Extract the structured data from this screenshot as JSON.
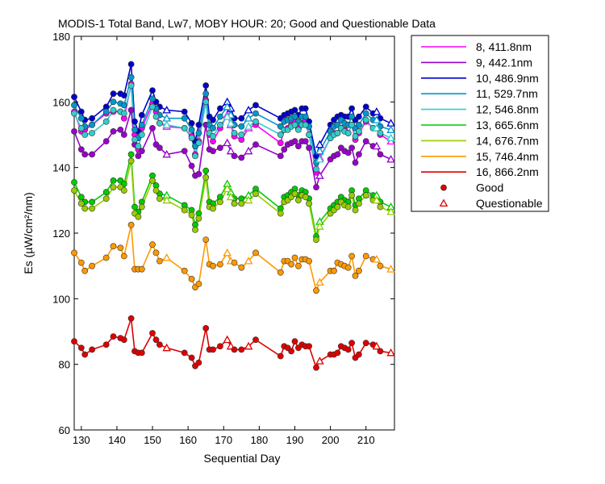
{
  "chart_data": {
    "type": "line",
    "title": "MODIS-1 Total Band,  Lw7, MOBY HOUR: 20;  Good and Questionable Data",
    "xlabel": "Sequential Day",
    "ylabel": "Es (µW/cm²/nm)",
    "xlim": [
      128,
      218
    ],
    "ylim": [
      60,
      180
    ],
    "xticks": [
      130,
      140,
      150,
      160,
      170,
      180,
      190,
      200,
      210
    ],
    "yticks": [
      60,
      80,
      100,
      120,
      140,
      160,
      180
    ],
    "grid": false,
    "legend_position": "outside-right",
    "x": [
      128,
      130,
      131,
      133,
      137,
      139,
      141,
      142,
      144,
      145,
      146,
      147,
      150,
      151,
      152,
      154,
      159,
      161,
      162,
      163,
      165,
      166,
      167,
      169,
      171,
      172,
      173,
      175,
      177,
      179,
      186,
      187,
      188,
      189,
      190,
      191,
      192,
      193,
      194,
      196,
      197,
      200,
      201,
      202,
      203,
      204,
      205,
      206,
      207,
      208,
      210,
      212,
      213,
      214,
      217
    ],
    "good_days": [
      128,
      130,
      131,
      133,
      137,
      139,
      141,
      142,
      144,
      145,
      146,
      147,
      150,
      151,
      152,
      159,
      161,
      162,
      163,
      165,
      166,
      167,
      169,
      173,
      175,
      179,
      186,
      187,
      188,
      189,
      190,
      191,
      192,
      193,
      194,
      196,
      200,
      201,
      202,
      203,
      204,
      205,
      206,
      207,
      208,
      210,
      212,
      214
    ],
    "questionable_days": [
      154,
      171,
      172,
      177,
      197,
      213,
      217
    ],
    "series": [
      {
        "name": "8, 411.8nm",
        "color": "#ff00ff",
        "values": [
          157.0,
          151.0,
          151.5,
          153.0,
          156.5,
          157.0,
          157.0,
          155.0,
          165.5,
          150.0,
          145.5,
          152.0,
          159.5,
          157.0,
          153.5,
          152.5,
          152.0,
          149.5,
          144.0,
          148.0,
          160.5,
          150.0,
          148.0,
          152.0,
          156.0,
          153.0,
          149.5,
          148.5,
          152.0,
          153.0,
          147.5,
          151.5,
          152.0,
          153.0,
          154.0,
          152.0,
          153.5,
          154.0,
          150.0,
          138.5,
          143.0,
          149.0,
          150.5,
          150.5,
          152.0,
          151.5,
          150.5,
          153.0,
          148.5,
          150.5,
          154.0,
          152.0,
          152.0,
          150.0,
          148.0
        ]
      },
      {
        "name": "9, 442.1nm",
        "color": "#9900cc",
        "values": [
          151.0,
          145.5,
          144.0,
          144.0,
          148.0,
          151.0,
          151.5,
          150.0,
          157.5,
          147.0,
          143.5,
          145.0,
          152.0,
          147.0,
          146.0,
          144.0,
          145.0,
          140.5,
          137.5,
          138.0,
          153.0,
          145.5,
          145.0,
          146.0,
          147.5,
          145.0,
          143.5,
          143.0,
          145.0,
          147.0,
          143.5,
          145.5,
          147.0,
          147.5,
          148.0,
          146.5,
          148.0,
          148.0,
          146.0,
          134.0,
          137.5,
          142.5,
          143.5,
          144.0,
          146.0,
          145.0,
          144.5,
          146.0,
          141.5,
          144.0,
          148.0,
          146.5,
          146.5,
          144.0,
          142.5
        ]
      },
      {
        "name": "10, 486.9nm",
        "color": "#0000cc",
        "values": [
          161.5,
          157.0,
          154.5,
          155.0,
          158.5,
          162.5,
          162.5,
          162.0,
          171.5,
          154.0,
          151.0,
          156.0,
          163.5,
          160.0,
          158.5,
          157.5,
          157.0,
          153.5,
          148.0,
          153.0,
          165.0,
          155.5,
          154.5,
          158.0,
          160.0,
          158.0,
          155.0,
          155.0,
          157.5,
          159.0,
          155.0,
          156.0,
          156.5,
          157.0,
          157.5,
          156.0,
          158.0,
          158.0,
          154.0,
          143.5,
          147.0,
          153.0,
          154.5,
          155.5,
          156.0,
          155.5,
          155.5,
          158.0,
          154.5,
          155.5,
          158.5,
          156.5,
          157.0,
          155.0,
          153.5
        ]
      },
      {
        "name": "11, 529.7nm",
        "color": "#0099cc",
        "values": [
          159.0,
          155.0,
          152.5,
          153.0,
          157.0,
          160.0,
          159.5,
          159.0,
          167.5,
          151.5,
          149.0,
          153.0,
          161.0,
          158.0,
          156.0,
          155.0,
          155.0,
          151.5,
          146.5,
          150.5,
          162.5,
          153.0,
          152.0,
          155.5,
          158.5,
          156.0,
          153.0,
          152.5,
          155.0,
          156.5,
          152.5,
          154.0,
          154.5,
          155.0,
          155.5,
          154.0,
          155.5,
          155.5,
          152.5,
          141.5,
          145.0,
          151.0,
          152.5,
          153.0,
          154.5,
          153.5,
          153.0,
          155.5,
          152.0,
          153.0,
          156.5,
          154.5,
          154.5,
          152.5,
          151.5
        ]
      },
      {
        "name": "12, 546.8nm",
        "color": "#33cccc",
        "values": [
          156.5,
          152.0,
          150.0,
          150.5,
          154.0,
          157.5,
          157.0,
          156.5,
          165.0,
          148.5,
          146.5,
          150.0,
          158.5,
          155.5,
          153.5,
          153.0,
          152.0,
          149.0,
          143.5,
          147.5,
          160.0,
          150.5,
          149.5,
          153.0,
          155.5,
          153.5,
          150.5,
          150.0,
          152.5,
          154.0,
          150.0,
          151.5,
          151.5,
          152.5,
          153.0,
          151.5,
          153.0,
          153.0,
          150.0,
          139.5,
          142.5,
          149.0,
          150.0,
          150.5,
          152.0,
          151.0,
          150.5,
          153.0,
          149.5,
          151.0,
          154.5,
          152.0,
          152.0,
          150.5,
          149.0
        ]
      },
      {
        "name": "13, 665.6nm",
        "color": "#00cc00",
        "values": [
          135.5,
          131.0,
          129.5,
          129.5,
          132.5,
          136.0,
          136.0,
          135.0,
          144.0,
          128.0,
          126.5,
          129.5,
          137.5,
          134.5,
          132.0,
          131.5,
          128.5,
          127.0,
          122.5,
          126.0,
          139.0,
          129.5,
          129.0,
          131.0,
          135.0,
          132.5,
          130.5,
          130.5,
          131.5,
          133.5,
          127.5,
          131.0,
          131.5,
          132.5,
          133.5,
          131.5,
          133.0,
          132.5,
          130.5,
          119.0,
          123.5,
          127.5,
          128.5,
          129.5,
          131.0,
          130.0,
          129.5,
          133.0,
          128.5,
          130.5,
          133.0,
          131.5,
          131.5,
          129.5,
          128.0
        ]
      },
      {
        "name": "14, 676.7nm",
        "color": "#99cc00",
        "values": [
          133.0,
          129.0,
          127.5,
          127.5,
          130.5,
          134.0,
          134.0,
          133.0,
          142.0,
          126.0,
          125.0,
          128.0,
          136.0,
          133.0,
          130.5,
          130.0,
          127.0,
          125.5,
          121.0,
          124.5,
          137.0,
          128.0,
          127.5,
          129.5,
          133.5,
          131.0,
          129.0,
          129.0,
          130.0,
          132.0,
          126.0,
          129.5,
          130.0,
          131.0,
          132.0,
          130.0,
          131.5,
          131.0,
          129.0,
          118.0,
          122.0,
          126.0,
          127.0,
          128.0,
          129.5,
          128.5,
          128.0,
          131.5,
          127.0,
          129.0,
          131.5,
          130.0,
          130.0,
          128.0,
          126.5
        ]
      },
      {
        "name": "15, 746.4nm",
        "color": "#ff9900",
        "values": [
          114.0,
          111.0,
          108.5,
          110.0,
          112.5,
          116.0,
          115.5,
          113.0,
          122.5,
          109.0,
          109.0,
          109.0,
          116.5,
          114.0,
          111.5,
          112.5,
          108.5,
          106.0,
          103.5,
          104.5,
          118.0,
          110.5,
          110.0,
          110.5,
          114.0,
          111.5,
          111.0,
          109.5,
          111.5,
          114.0,
          108.0,
          111.5,
          111.5,
          110.5,
          112.5,
          110.0,
          112.0,
          112.0,
          111.5,
          102.5,
          105.0,
          108.5,
          108.5,
          111.0,
          110.5,
          110.0,
          109.5,
          113.0,
          107.0,
          108.5,
          113.0,
          112.0,
          112.0,
          110.0,
          109.0
        ]
      },
      {
        "name": "16, 866.2nm",
        "color": "#dd0000",
        "values": [
          87.0,
          85.0,
          83.0,
          84.5,
          86.0,
          88.5,
          88.0,
          87.5,
          94.0,
          84.0,
          83.5,
          83.5,
          89.5,
          87.5,
          86.0,
          85.0,
          83.5,
          82.0,
          79.5,
          80.5,
          91.0,
          84.5,
          84.5,
          85.5,
          87.5,
          85.5,
          84.5,
          84.5,
          85.5,
          87.5,
          82.5,
          85.5,
          85.0,
          84.0,
          87.0,
          85.0,
          86.0,
          85.5,
          85.5,
          79.0,
          81.0,
          83.0,
          83.0,
          83.5,
          85.5,
          85.0,
          84.5,
          86.5,
          82.0,
          83.0,
          86.5,
          86.0,
          85.5,
          84.0,
          83.5
        ]
      }
    ],
    "marker_legend": [
      {
        "label": "Good",
        "marker": "filled-circle"
      },
      {
        "label": "Questionable",
        "marker": "open-triangle"
      }
    ]
  }
}
